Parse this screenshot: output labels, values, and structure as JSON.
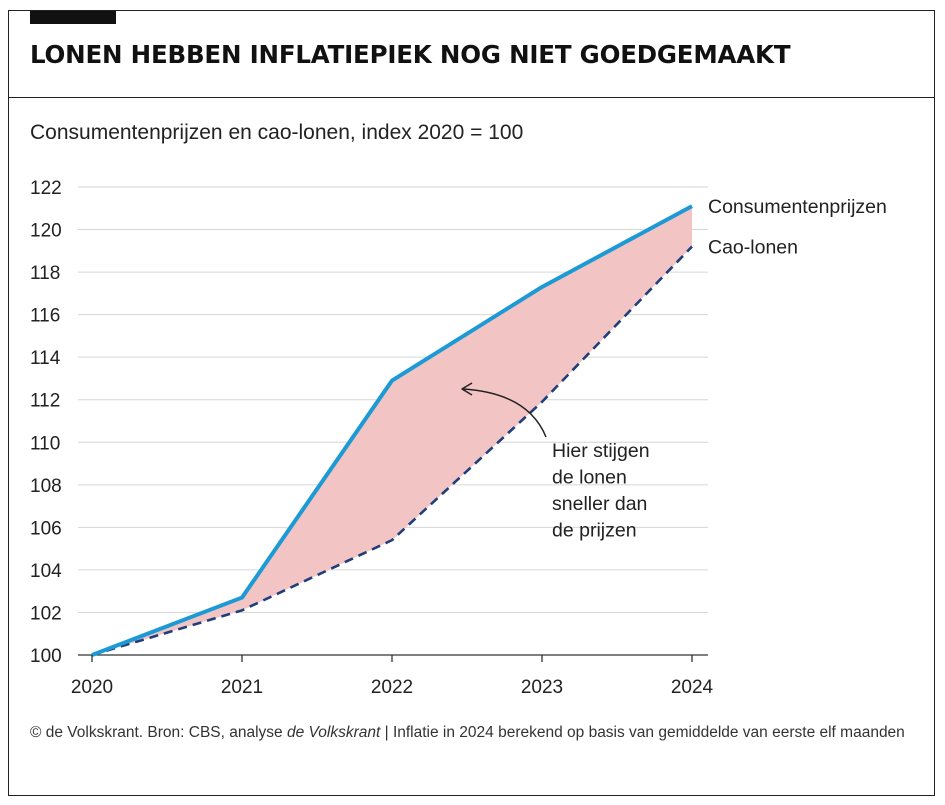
{
  "header": {
    "title": "LONEN HEBBEN INFLATIEPIEK NOG NIET GOEDGEMAAKT",
    "subtitle": "Consumentenprijzen en cao-lonen, index 2020 = 100"
  },
  "chart_data": {
    "type": "line",
    "x": [
      "2020",
      "2021",
      "2022",
      "2023",
      "2024"
    ],
    "series": [
      {
        "name": "Consumentenprijzen",
        "values": [
          100.0,
          102.7,
          112.9,
          117.3,
          121.1
        ],
        "color": "#1b9ad6",
        "style": "solid"
      },
      {
        "name": "Cao-lonen",
        "values": [
          100.0,
          102.1,
          105.4,
          111.9,
          119.2
        ],
        "color": "#1f3e7a",
        "style": "dashed"
      }
    ],
    "fill_between_color": "#f2c4c4",
    "ylim": [
      100,
      122
    ],
    "yticks": [
      "100",
      "102",
      "104",
      "106",
      "108",
      "110",
      "112",
      "114",
      "116",
      "118",
      "120",
      "122"
    ],
    "annotation": [
      "Hier stijgen",
      "de lonen",
      "sneller dan",
      "de prijzen"
    ],
    "grid": true
  },
  "footer": {
    "prefix": "© de Volkskrant. Bron: CBS, analyse ",
    "italic": "de Volkskrant",
    "suffix": " | Inflatie in 2024 berekend op basis van gemiddelde van eerste elf maanden"
  },
  "colors": {
    "grid": "#d6d6d6",
    "axis": "#333333",
    "text": "#222222"
  }
}
